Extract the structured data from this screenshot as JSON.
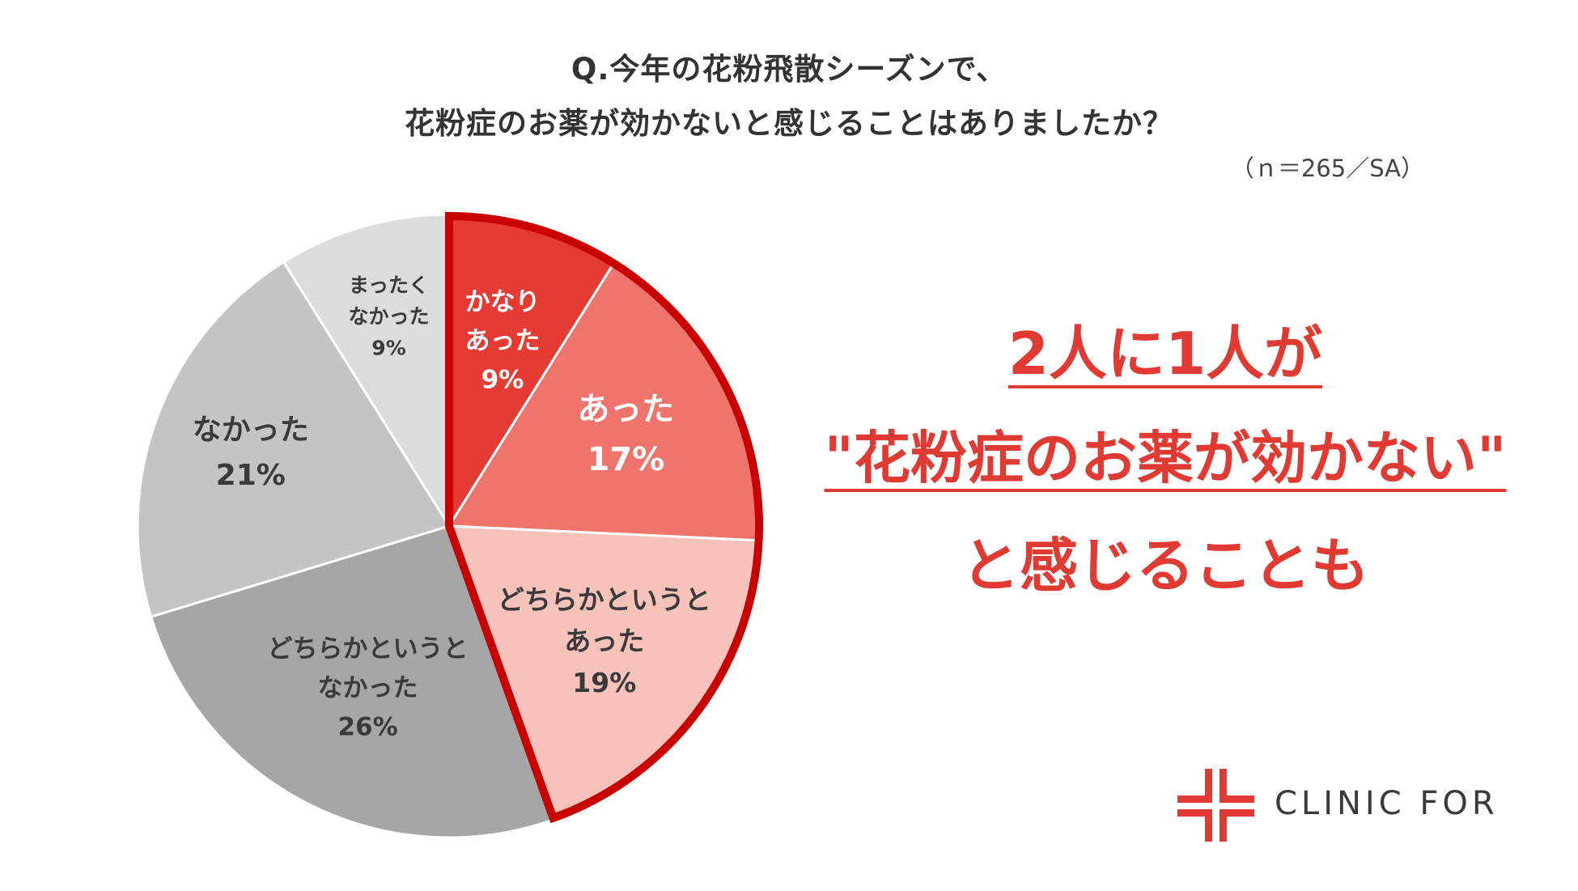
{
  "title_line1": "Q.今年の花粉飛散シーズンで、",
  "title_line2": "花粉症のお薬が効かないと感じることはありましたか？",
  "sample_note": "（ｎ＝265／SA）",
  "headline": {
    "line1": "2人に1人が",
    "line2": "\"花粉症のお薬が効かない\"",
    "line3": "と感じることも"
  },
  "logo": {
    "text": "CLINIC FOR",
    "icon": "clinic-for-cross-logo"
  },
  "colors": {
    "accent": "#e03a33",
    "highlight_border": "#c90000"
  },
  "chart_data": {
    "type": "pie",
    "title": "Q.今年の花粉飛散シーズンで、花粉症のお薬が効かないと感じることはありましたか？",
    "start": "12 o'clock",
    "direction": "clockwise",
    "slices": [
      {
        "label": "かなりあった",
        "label_lines": [
          "かなり",
          "あった"
        ],
        "value": 9,
        "pct_text": "9%",
        "color": "#e63b33",
        "text_color": "#ffffff",
        "highlight": true
      },
      {
        "label": "あった",
        "label_lines": [
          "あった"
        ],
        "value": 17,
        "pct_text": "17%",
        "color": "#ef746c",
        "text_color": "#ffffff",
        "highlight": true
      },
      {
        "label": "どちらかというとあった",
        "label_lines": [
          "どちらかというと",
          "あった"
        ],
        "value": 19,
        "pct_text": "19%",
        "color": "#f6c2b9",
        "text_color": "#3a3a3a",
        "highlight": true
      },
      {
        "label": "どちらかというとなかった",
        "label_lines": [
          "どちらかというと",
          "なかった"
        ],
        "value": 26,
        "pct_text": "26%",
        "color": "#a6a6a6",
        "text_color": "#3a3a3a",
        "highlight": false
      },
      {
        "label": "なかった",
        "label_lines": [
          "なかった"
        ],
        "value": 21,
        "pct_text": "21%",
        "color": "#c4c4c4",
        "text_color": "#3a3a3a",
        "highlight": false
      },
      {
        "label": "まったくなかった",
        "label_lines": [
          "まったく",
          "なかった"
        ],
        "value": 9,
        "pct_text": "9%",
        "color": "#dcdcdc",
        "text_color": "#3a3a3a",
        "highlight": false
      }
    ]
  }
}
